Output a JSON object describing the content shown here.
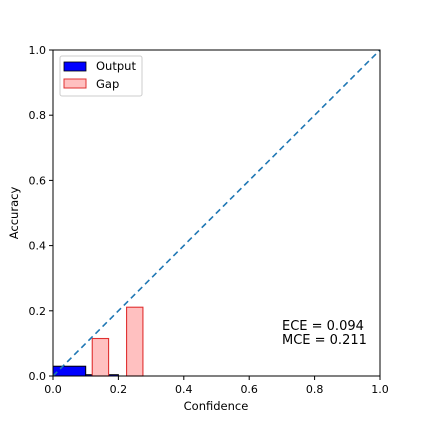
{
  "chart_data": {
    "type": "bar",
    "title": "",
    "xlabel": "Confidence",
    "ylabel": "Accuracy",
    "xlim": [
      0.0,
      1.0
    ],
    "ylim": [
      0.0,
      1.0
    ],
    "xticks": [
      "0.0",
      "0.2",
      "0.4",
      "0.6",
      "0.8",
      "1.0"
    ],
    "yticks": [
      "0.0",
      "0.2",
      "0.4",
      "0.6",
      "0.8",
      "1.0"
    ],
    "grid": false,
    "legend_position": "top-left",
    "bin_width": 0.1,
    "series": [
      {
        "name": "Output",
        "color": "#0000ff",
        "edgecolor": "#000000",
        "bins": [
          {
            "x_start": 0.0,
            "x_end": 0.1,
            "value": 0.03
          },
          {
            "x_start": 0.1,
            "x_end": 0.2,
            "value": 0.004
          }
        ]
      },
      {
        "name": "Gap",
        "color": "#ffc0c0",
        "edgecolor": "#e03030",
        "bins": [
          {
            "x_start": 0.12,
            "x_end": 0.17,
            "bottom": 0.0,
            "value": 0.115
          },
          {
            "x_start": 0.225,
            "x_end": 0.275,
            "bottom": 0.0,
            "value": 0.211
          }
        ]
      }
    ],
    "reference_line": {
      "from": [
        0,
        0
      ],
      "to": [
        1,
        1
      ],
      "style": "dashed",
      "color": "#1f77b4"
    },
    "annotations": [
      "ECE = 0.094",
      "MCE = 0.211"
    ]
  }
}
